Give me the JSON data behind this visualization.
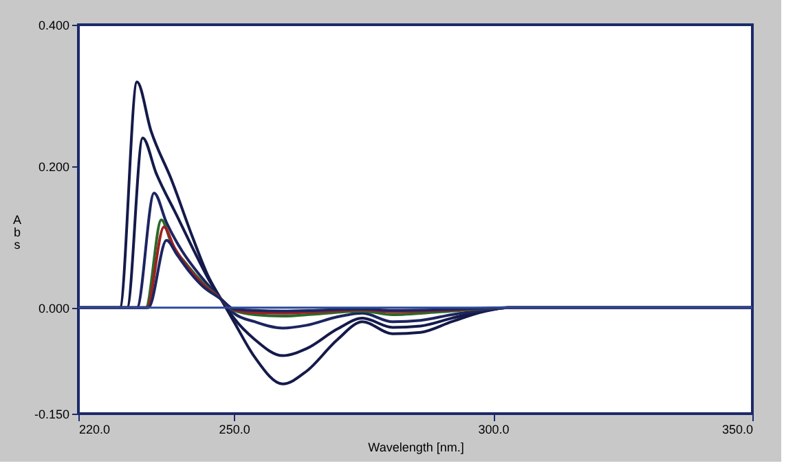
{
  "chart_data": {
    "type": "line",
    "xlabel": "Wavelength [nm.]",
    "ylabel": "Abs",
    "xlim": [
      220,
      350
    ],
    "xticks": [
      {
        "value": 220,
        "label": "220.0"
      },
      {
        "value": 250,
        "label": "250.0"
      },
      {
        "value": 300,
        "label": "300.0"
      },
      {
        "value": 350,
        "label": "350.0"
      }
    ],
    "ylim": [
      -0.15,
      0.4
    ],
    "yticks": [
      {
        "value": -0.15,
        "label": "-0.150"
      },
      {
        "value": 0,
        "label": "0.000"
      },
      {
        "value": 0.2,
        "label": "0.200"
      },
      {
        "value": 0.4,
        "label": "0.400"
      }
    ],
    "grid": false,
    "legend": false,
    "marker": "none",
    "line_style": "solid",
    "ref_lines": [
      {
        "axis": "y",
        "value": 0,
        "color": "#2b4a9a"
      }
    ],
    "series": [
      {
        "color": "#141a4a",
        "x": [
          220,
          228,
          231.3,
          234,
          238,
          242,
          245,
          247.5,
          250,
          254,
          259.4,
          264,
          270,
          274.8,
          280.6,
          286,
          292,
          298,
          303,
          350
        ],
        "values": [
          0,
          0,
          0.319,
          0.25,
          0.18,
          0.1,
          0.045,
          0.012,
          -0.02,
          -0.07,
          -0.108,
          -0.09,
          -0.045,
          -0.02,
          -0.037,
          -0.035,
          -0.02,
          -0.006,
          0,
          0
        ]
      },
      {
        "color": "#141a4a",
        "x": [
          220,
          229.4,
          232.4,
          235,
          239,
          243,
          245.5,
          247.5,
          250,
          254,
          259.4,
          264,
          270,
          274.8,
          280.6,
          286,
          292,
          298,
          303,
          350
        ],
        "values": [
          0,
          0,
          0.24,
          0.19,
          0.13,
          0.07,
          0.035,
          0.012,
          -0.015,
          -0.045,
          -0.068,
          -0.058,
          -0.03,
          -0.015,
          -0.028,
          -0.026,
          -0.015,
          -0.005,
          0,
          0
        ]
      },
      {
        "color": "#1c2560",
        "x": [
          220,
          231.3,
          234.6,
          237,
          240,
          243.5,
          247.5,
          250,
          254,
          259.4,
          264,
          270,
          274.8,
          280.6,
          286,
          292,
          298,
          303,
          350
        ],
        "values": [
          0,
          0,
          0.162,
          0.12,
          0.08,
          0.045,
          0.012,
          -0.008,
          -0.02,
          -0.029,
          -0.025,
          -0.013,
          -0.008,
          -0.02,
          -0.018,
          -0.01,
          -0.004,
          0,
          0
        ]
      },
      {
        "color": "#2a6a2a",
        "x": [
          220,
          233,
          236,
          238,
          241,
          244,
          247.5,
          250,
          254,
          259.4,
          266,
          274.8,
          280.6,
          290,
          303,
          350
        ],
        "values": [
          0,
          0,
          0.124,
          0.09,
          0.06,
          0.035,
          0.012,
          -0.004,
          -0.01,
          -0.012,
          -0.009,
          -0.005,
          -0.01,
          -0.006,
          0,
          0
        ]
      },
      {
        "color": "#a02020",
        "x": [
          220,
          233.2,
          236.5,
          238.5,
          241,
          244,
          247.5,
          250,
          254,
          259.4,
          266,
          274.8,
          280.6,
          290,
          303,
          350
        ],
        "values": [
          0,
          0,
          0.114,
          0.085,
          0.058,
          0.033,
          0.012,
          -0.003,
          -0.007,
          -0.008,
          -0.006,
          -0.003,
          -0.006,
          -0.004,
          0,
          0
        ]
      },
      {
        "color": "#1c2560",
        "x": [
          220,
          233.5,
          237,
          239,
          241.5,
          244,
          247.5,
          250,
          254,
          259.4,
          266,
          274.8,
          280.6,
          290,
          303,
          350
        ],
        "values": [
          0,
          0,
          0.095,
          0.075,
          0.05,
          0.03,
          0.012,
          -0.002,
          -0.004,
          -0.005,
          -0.004,
          -0.002,
          -0.004,
          -0.003,
          0,
          0
        ]
      }
    ]
  }
}
